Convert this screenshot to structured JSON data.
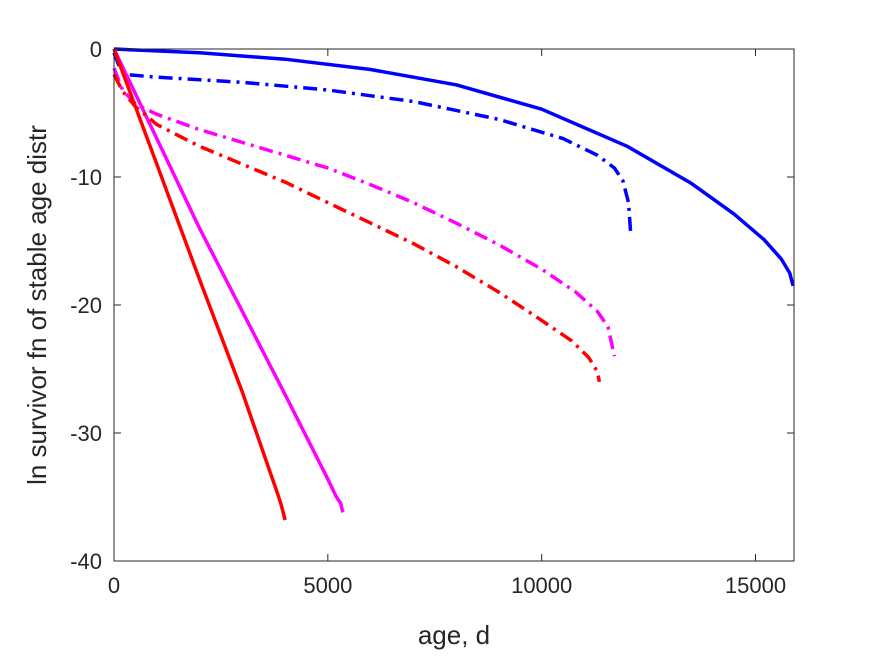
{
  "chart_data": {
    "type": "line",
    "xlabel": "age, d",
    "ylabel": "ln survivor fn of stable age distr",
    "xlim": [
      0,
      15900
    ],
    "ylim": [
      -40,
      0
    ],
    "xticks": [
      0,
      5000,
      10000,
      15000
    ],
    "yticks": [
      0,
      -10,
      -20,
      -30,
      -40
    ],
    "grid": false,
    "legend": "none",
    "series": [
      {
        "color": "#0000ff",
        "dash": "solid",
        "x": [
          0,
          2000,
          4000,
          6000,
          8000,
          10000,
          12000,
          13500,
          14500,
          15200,
          15600,
          15800,
          15880
        ],
        "y": [
          0,
          -0.3,
          -0.8,
          -1.6,
          -2.8,
          -4.7,
          -7.6,
          -10.5,
          -12.9,
          -14.9,
          -16.4,
          -17.5,
          -18.5
        ]
      },
      {
        "color": "#0000ff",
        "dash": "dashdot",
        "x": [
          0,
          150,
          300,
          1000,
          3000,
          5000,
          7000,
          9000,
          10500,
          11300,
          11700,
          11900,
          12030,
          12080
        ],
        "y": [
          -0.3,
          -1.6,
          -2.0,
          -2.2,
          -2.6,
          -3.2,
          -4.1,
          -5.5,
          -7.0,
          -8.3,
          -9.3,
          -10.3,
          -12.0,
          -14.3
        ]
      },
      {
        "color": "#ff00ff",
        "dash": "solid",
        "x": [
          0,
          500,
          1000,
          2000,
          3000,
          4000,
          5000,
          5200,
          5300,
          5350
        ],
        "y": [
          0,
          -3.5,
          -7.0,
          -14.0,
          -20.5,
          -27.0,
          -33.6,
          -35.0,
          -35.5,
          -36.2
        ]
      },
      {
        "color": "#ff00ff",
        "dash": "dashdot",
        "x": [
          0,
          200,
          500,
          1000,
          2000,
          3000,
          4000,
          5000,
          6000,
          7000,
          8000,
          9000,
          10000,
          10800,
          11300,
          11550,
          11700
        ],
        "y": [
          -1.5,
          -3.2,
          -4.3,
          -5.1,
          -6.3,
          -7.3,
          -8.3,
          -9.3,
          -10.6,
          -12.0,
          -13.6,
          -15.3,
          -17.2,
          -19.0,
          -20.5,
          -21.7,
          -24.0
        ]
      },
      {
        "color": "#ff0000",
        "dash": "solid",
        "x": [
          0,
          500,
          1000,
          2000,
          3000,
          3800,
          3900,
          4000
        ],
        "y": [
          0,
          -4.5,
          -9.0,
          -18.0,
          -26.8,
          -34.5,
          -35.5,
          -36.8
        ]
      },
      {
        "color": "#ff0000",
        "dash": "dashdot",
        "x": [
          0,
          200,
          500,
          1000,
          2000,
          3000,
          4000,
          5000,
          6000,
          7000,
          8000,
          9000,
          10000,
          10700,
          11100,
          11300,
          11350
        ],
        "y": [
          -2.0,
          -3.3,
          -4.5,
          -5.9,
          -7.6,
          -9.0,
          -10.4,
          -12.0,
          -13.6,
          -15.2,
          -17.0,
          -19.0,
          -21.2,
          -22.8,
          -24.1,
          -25.2,
          -26.0
        ]
      }
    ]
  }
}
